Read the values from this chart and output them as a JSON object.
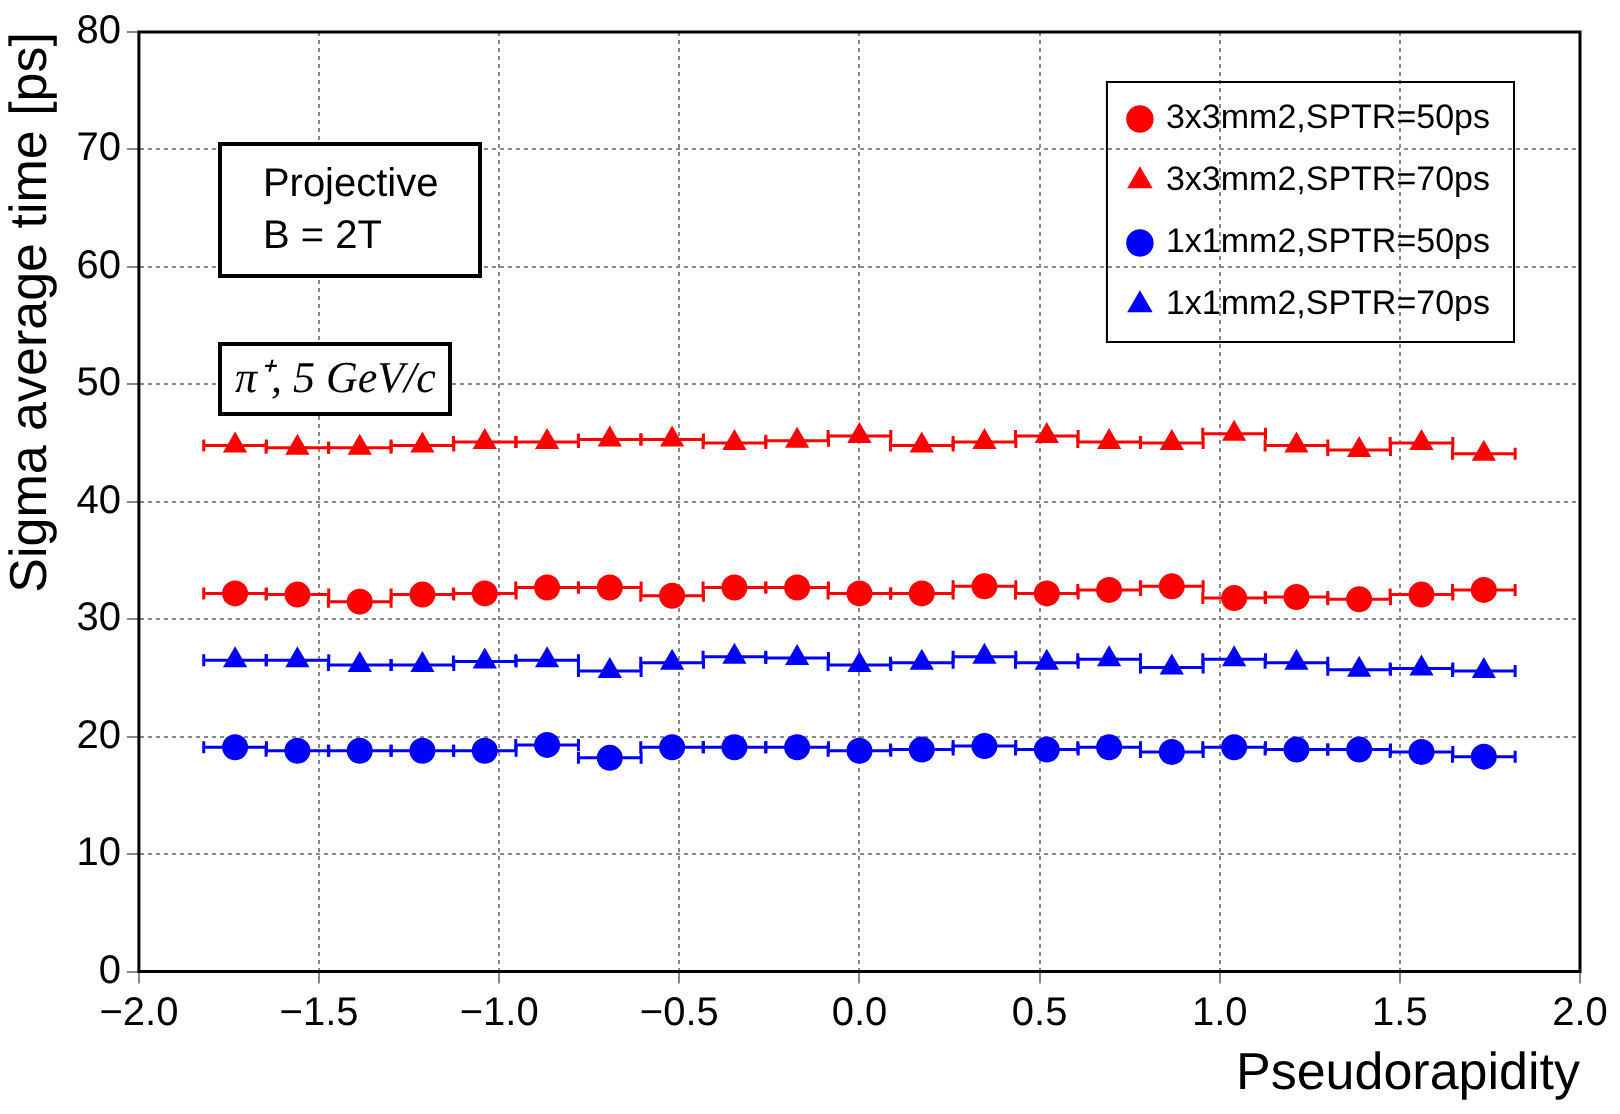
{
  "chart_data": {
    "type": "scatter",
    "xlabel": "Pseudorapidity",
    "ylabel": "Sigma average time [ps]",
    "x": [
      -1.733,
      -1.56,
      -1.387,
      -1.213,
      -1.04,
      -0.867,
      -0.693,
      -0.52,
      -0.347,
      -0.173,
      0,
      0.173,
      0.347,
      0.52,
      0.693,
      0.867,
      1.04,
      1.213,
      1.387,
      1.56,
      1.733
    ],
    "xlim": [
      -2,
      2
    ],
    "xticks": [
      {
        "value": -2,
        "label": "−2.0"
      },
      {
        "value": -1.5,
        "label": "−1.5"
      },
      {
        "value": -1,
        "label": "−1.0"
      },
      {
        "value": -0.5,
        "label": "−0.5"
      },
      {
        "value": 0,
        "label": "0.0"
      },
      {
        "value": 0.5,
        "label": "0.5"
      },
      {
        "value": 1,
        "label": "1.0"
      },
      {
        "value": 1.5,
        "label": "1.5"
      },
      {
        "value": 2,
        "label": "2.0"
      }
    ],
    "ylim": [
      0,
      80
    ],
    "yticks": [
      0,
      10,
      20,
      30,
      40,
      50,
      60,
      70,
      80
    ],
    "grid": true,
    "legend": "top right",
    "series": [
      {
        "name": "3x3mm2,SPTR=50ps",
        "color": "#ff0000",
        "marker": "circle",
        "values": [
          32.2,
          32.1,
          31.5,
          32.1,
          32.2,
          32.7,
          32.7,
          32.0,
          32.7,
          32.7,
          32.2,
          32.2,
          32.8,
          32.2,
          32.5,
          32.8,
          31.8,
          31.9,
          31.7,
          32.1,
          32.5
        ],
        "xerrors": [
          0.087,
          0.087,
          0.087,
          0.087,
          0.087,
          0.087,
          0.087,
          0.087,
          0.087,
          0.087,
          0.087,
          0.087,
          0.087,
          0.087,
          0.087,
          0.087,
          0.087,
          0.087,
          0.087,
          0.087,
          0.087
        ]
      },
      {
        "name": "3x3mm2,SPTR=70ps",
        "color": "#ff0000",
        "marker": "triangle",
        "values": [
          44.8,
          44.6,
          44.6,
          44.8,
          45.1,
          45.1,
          45.3,
          45.3,
          45.0,
          45.2,
          45.6,
          44.8,
          45.1,
          45.6,
          45.1,
          45.0,
          45.8,
          44.8,
          44.4,
          45.0,
          44.1
        ],
        "xerrors": [
          0.087,
          0.087,
          0.087,
          0.087,
          0.087,
          0.087,
          0.087,
          0.087,
          0.087,
          0.087,
          0.087,
          0.087,
          0.087,
          0.087,
          0.087,
          0.087,
          0.087,
          0.087,
          0.087,
          0.087,
          0.087
        ]
      },
      {
        "name": "1x1mm2,SPTR=50ps",
        "color": "#0000ff",
        "marker": "circle",
        "values": [
          19.1,
          18.8,
          18.8,
          18.8,
          18.8,
          19.3,
          18.2,
          19.1,
          19.1,
          19.1,
          18.8,
          18.9,
          19.2,
          18.9,
          19.1,
          18.7,
          19.1,
          18.9,
          18.9,
          18.7,
          18.3
        ],
        "xerrors": [
          0.087,
          0.087,
          0.087,
          0.087,
          0.087,
          0.087,
          0.087,
          0.087,
          0.087,
          0.087,
          0.087,
          0.087,
          0.087,
          0.087,
          0.087,
          0.087,
          0.087,
          0.087,
          0.087,
          0.087,
          0.087
        ]
      },
      {
        "name": "1x1mm2,SPTR=70ps",
        "color": "#0000ff",
        "marker": "triangle",
        "values": [
          26.5,
          26.5,
          26.1,
          26.1,
          26.4,
          26.5,
          25.6,
          26.3,
          26.8,
          26.7,
          26.1,
          26.3,
          26.8,
          26.3,
          26.6,
          25.9,
          26.6,
          26.3,
          25.7,
          25.8,
          25.6
        ],
        "xerrors": [
          0.087,
          0.087,
          0.087,
          0.087,
          0.087,
          0.087,
          0.087,
          0.087,
          0.087,
          0.087,
          0.087,
          0.087,
          0.087,
          0.087,
          0.087,
          0.087,
          0.087,
          0.087,
          0.087,
          0.087,
          0.087
        ]
      }
    ],
    "annotations": [
      "Projective\nB = 2T",
      "π⁺, 5 GeV/c"
    ]
  }
}
